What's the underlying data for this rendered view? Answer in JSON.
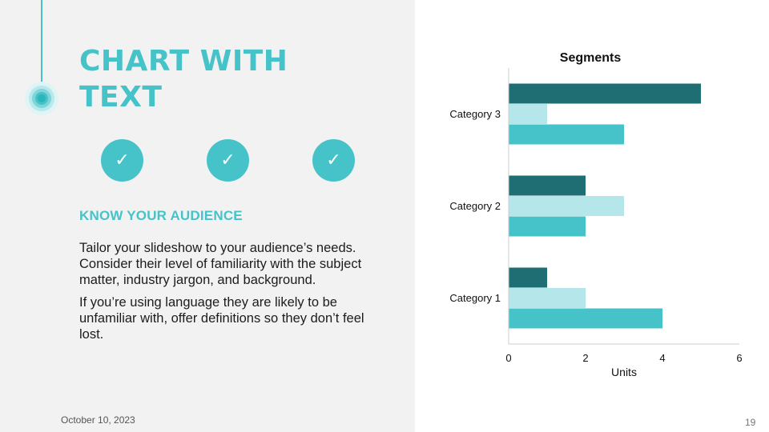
{
  "slide": {
    "title": "CHART WITH TEXT",
    "subtitle": "KNOW YOUR AUDIENCE",
    "paragraphs": [
      "Tailor your slideshow to your audience’s needs. Consider their level of familiarity with the subject matter, industry jargon, and background.",
      "If you’re using language they are likely to be unfamiliar with, offer definitions so they don’t feel lost."
    ],
    "check_glyph": "✓",
    "date": "October 10, 2023",
    "page_number": "19"
  },
  "icons": {
    "timeline": "timeline-dot-icon",
    "check": "check-circle-icon"
  },
  "colors": {
    "accent": "#45c3c9",
    "panel": "#f2f2f2"
  },
  "chart_data": {
    "type": "bar",
    "orientation": "horizontal",
    "title": "Segments",
    "xlabel": "Units",
    "ylabel": "",
    "xlim": [
      0,
      6
    ],
    "xticks": [
      0,
      2,
      4,
      6
    ],
    "grid": false,
    "categories": [
      "Category 1",
      "Category 2",
      "Category 3"
    ],
    "series": [
      {
        "values": [
          1,
          2,
          5
        ],
        "color": "#1f6e73"
      },
      {
        "values": [
          2,
          3,
          1
        ],
        "color": "#b5e6e9"
      },
      {
        "values": [
          4,
          2,
          3
        ],
        "color": "#45c3c9"
      }
    ]
  }
}
